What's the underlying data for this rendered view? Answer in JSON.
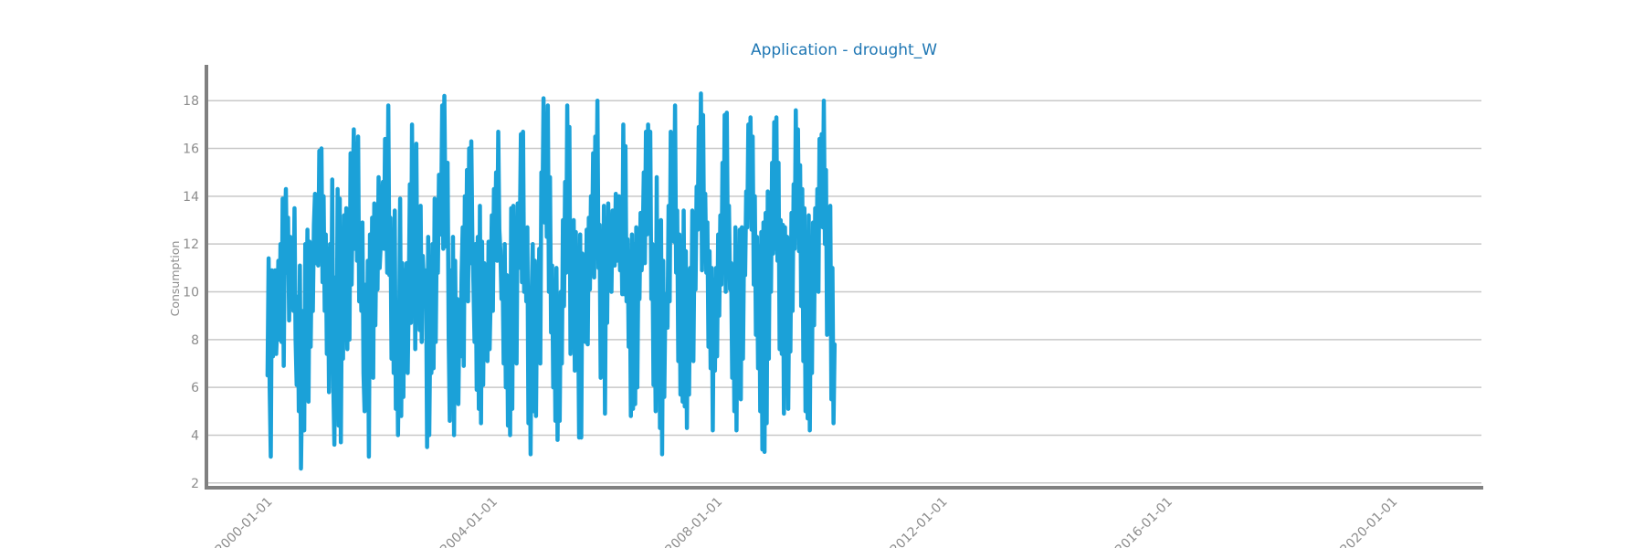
{
  "chart_data": {
    "type": "line",
    "title": "Application - drought_W",
    "xlabel": "",
    "ylabel": "Consumption",
    "x_range": [
      "1998-12-01",
      "2021-08-01"
    ],
    "ylim": [
      1.8,
      19.5
    ],
    "y_ticks": [
      2,
      4,
      6,
      8,
      10,
      12,
      14,
      16,
      18
    ],
    "x_ticks": [
      "2000-01-01",
      "2004-01-01",
      "2008-01-01",
      "2012-01-01",
      "2016-01-01",
      "2020-01-01"
    ],
    "grid": "horizontal",
    "legend": "none",
    "series": [
      {
        "color": "#1ba1d8",
        "frequency": "weekly",
        "start": "2000-01-02",
        "values": [
          6.5,
          11.4,
          5.9,
          3.1,
          10.9,
          7.3,
          8.4,
          10.9,
          7.4,
          8.6,
          11.3,
          8.0,
          12.0,
          7.9,
          13.9,
          6.9,
          12.6,
          14.3,
          10.8,
          13.1,
          8.8,
          12.3,
          11.5,
          11.8,
          9.2,
          13.5,
          8.0,
          6.1,
          9.8,
          5.0,
          11.1,
          2.6,
          6.0,
          9.2,
          4.2,
          12.0,
          8.0,
          12.6,
          5.4,
          12.1,
          7.7,
          11.5,
          9.2,
          12.8,
          14.1,
          11.2,
          13.3,
          11.1,
          15.9,
          11.4,
          16.0,
          10.4,
          14.0,
          9.2,
          12.4,
          7.4,
          11.8,
          5.8,
          12.0,
          7.1,
          14.7,
          6.1,
          3.6,
          10.6,
          5.6,
          14.3,
          4.4,
          13.9,
          3.7,
          10.3,
          7.2,
          13.2,
          9.4,
          13.5,
          7.6,
          12.1,
          8.0,
          15.8,
          10.3,
          14.0,
          16.8,
          11.8,
          16.2,
          11.3,
          16.5,
          9.6,
          12.0,
          9.2,
          12.9,
          6.6,
          5.0,
          10.3,
          6.2,
          11.3,
          3.1,
          12.4,
          6.6,
          13.1,
          6.4,
          13.7,
          8.6,
          12.4,
          10.1,
          14.8,
          11.0,
          12.0,
          13.2,
          14.6,
          11.8,
          16.4,
          14.0,
          10.8,
          17.8,
          10.7,
          13.1,
          7.2,
          12.5,
          6.6,
          13.4,
          5.1,
          9.5,
          4.0,
          8.0,
          13.9,
          4.8,
          11.2,
          5.6,
          10.9,
          8.0,
          11.2,
          6.6,
          9.9,
          14.5,
          8.7,
          17.0,
          10.1,
          15.9,
          7.6,
          16.2,
          9.8,
          12.3,
          8.4,
          13.6,
          7.9,
          11.5,
          10.4,
          9.6,
          10.9,
          3.5,
          12.3,
          4.0,
          8.8,
          6.6,
          12.0,
          6.8,
          13.9,
          7.9,
          12.4,
          10.8,
          14.9,
          12.4,
          13.2,
          17.8,
          11.8,
          18.2,
          13.4,
          11.9,
          15.4,
          8.2,
          4.6,
          10.9,
          5.8,
          12.3,
          4.0,
          11.3,
          6.4,
          9.7,
          5.3,
          9.5,
          7.3,
          10.7,
          12.7,
          6.9,
          14.0,
          9.8,
          15.1,
          9.6,
          16.0,
          11.2,
          16.3,
          12.1,
          10.3,
          7.9,
          12.0,
          5.9,
          12.3,
          5.1,
          13.6,
          4.5,
          12.1,
          6.1,
          11.2,
          7.7,
          9.9,
          7.1,
          12.1,
          7.6,
          9.9,
          13.2,
          9.2,
          14.3,
          11.6,
          15.0,
          11.3,
          16.7,
          12.6,
          11.7,
          9.7,
          10.9,
          7.0,
          12.0,
          6.0,
          10.7,
          4.4,
          9.2,
          4.0,
          13.5,
          5.1,
          13.6,
          9.5,
          12.8,
          7.0,
          13.7,
          11.0,
          12.4,
          16.6,
          10.4,
          16.7,
          10.0,
          12.5,
          9.6,
          12.7,
          4.5,
          9.8,
          3.2,
          10.0,
          12.0,
          5.0,
          11.3,
          4.8,
          10.2,
          7.8,
          11.8,
          7.0,
          15.0,
          13.3,
          18.1,
          12.9,
          16.0,
          12.3,
          17.8,
          10.0,
          14.8,
          8.3,
          11.1,
          6.0,
          10.4,
          4.6,
          11.0,
          3.8,
          8.9,
          4.6,
          10.0,
          7.0,
          13.0,
          9.4,
          14.6,
          10.8,
          17.8,
          11.4,
          16.9,
          7.4,
          12.2,
          7.8,
          13.0,
          6.7,
          12.5,
          7.8,
          9.8,
          3.9,
          12.4,
          3.9,
          11.6,
          8.8,
          10.6,
          7.9,
          12.6,
          7.8,
          13.1,
          10.1,
          14.0,
          11.6,
          15.8,
          10.6,
          16.5,
          12.8,
          18.0,
          11.0,
          12.8,
          6.4,
          10.5,
          7.0,
          13.6,
          4.9,
          12.2,
          8.7,
          13.7,
          10.8,
          11.7,
          10.0,
          13.4,
          12.3,
          11.1,
          14.1,
          11.3,
          13.5,
          14.0,
          10.9,
          13.1,
          9.9,
          17.0,
          9.9,
          16.1,
          9.6,
          12.2,
          7.7,
          11.3,
          4.8,
          12.4,
          5.1,
          12.0,
          5.3,
          12.7,
          6.0,
          11.3,
          9.7,
          13.3,
          10.9,
          12.1,
          15.0,
          11.2,
          16.7,
          12.4,
          17.0,
          12.8,
          16.7,
          9.7,
          12.0,
          6.1,
          10.3,
          5.0,
          14.8,
          6.0,
          12.3,
          4.3,
          13.0,
          3.2,
          11.3,
          5.6,
          9.5,
          9.9,
          8.5,
          13.6,
          9.6,
          16.7,
          12.8,
          16.0,
          12.1,
          17.8,
          10.8,
          13.4,
          7.1,
          12.4,
          5.7,
          10.8,
          5.4,
          13.4,
          5.2,
          11.7,
          4.3,
          10.9,
          5.7,
          11.0,
          7.8,
          13.4,
          7.1,
          12.0,
          10.1,
          14.4,
          12.6,
          16.9,
          14.0,
          18.3,
          10.9,
          17.4,
          11.5,
          14.1,
          10.8,
          12.9,
          7.7,
          11.7,
          6.8,
          11.0,
          4.2,
          10.5,
          6.7,
          11.0,
          7.3,
          12.4,
          9.0,
          13.2,
          10.3,
          15.4,
          11.1,
          17.4,
          10.0,
          17.5,
          11.6,
          13.6,
          10.1,
          11.2,
          6.4,
          10.6,
          5.0,
          12.7,
          4.2,
          11.0,
          6.2,
          12.6,
          5.5,
          12.7,
          7.2,
          11.9,
          10.7,
          14.2,
          12.7,
          17.0,
          13.8,
          17.3,
          12.6,
          16.5,
          10.3,
          14.0,
          8.2,
          12.3,
          6.8,
          11.9,
          5.0,
          12.5,
          3.4,
          12.9,
          3.3,
          13.3,
          4.5,
          14.2,
          7.2,
          13.9,
          10.0,
          15.4,
          11.6,
          17.1,
          11.8,
          17.3,
          11.3,
          15.4,
          7.6,
          13.0,
          7.4,
          12.8,
          4.9,
          12.7,
          6.1,
          12.3,
          5.1,
          11.2,
          7.5,
          13.3,
          9.2,
          14.5,
          11.8,
          17.6,
          12.6,
          16.8,
          11.7,
          15.3,
          9.4,
          14.3,
          7.1,
          13.5,
          5.0,
          12.0,
          4.7,
          13.2,
          4.2,
          11.0,
          6.6,
          12.9,
          8.6,
          13.5,
          10.6,
          14.3,
          10.0,
          16.4,
          13.0,
          16.6,
          12.7,
          18.0,
          12.0,
          15.1,
          8.2,
          12.2,
          9.1,
          13.6,
          5.5,
          11.0,
          4.5,
          7.8
        ]
      }
    ]
  }
}
